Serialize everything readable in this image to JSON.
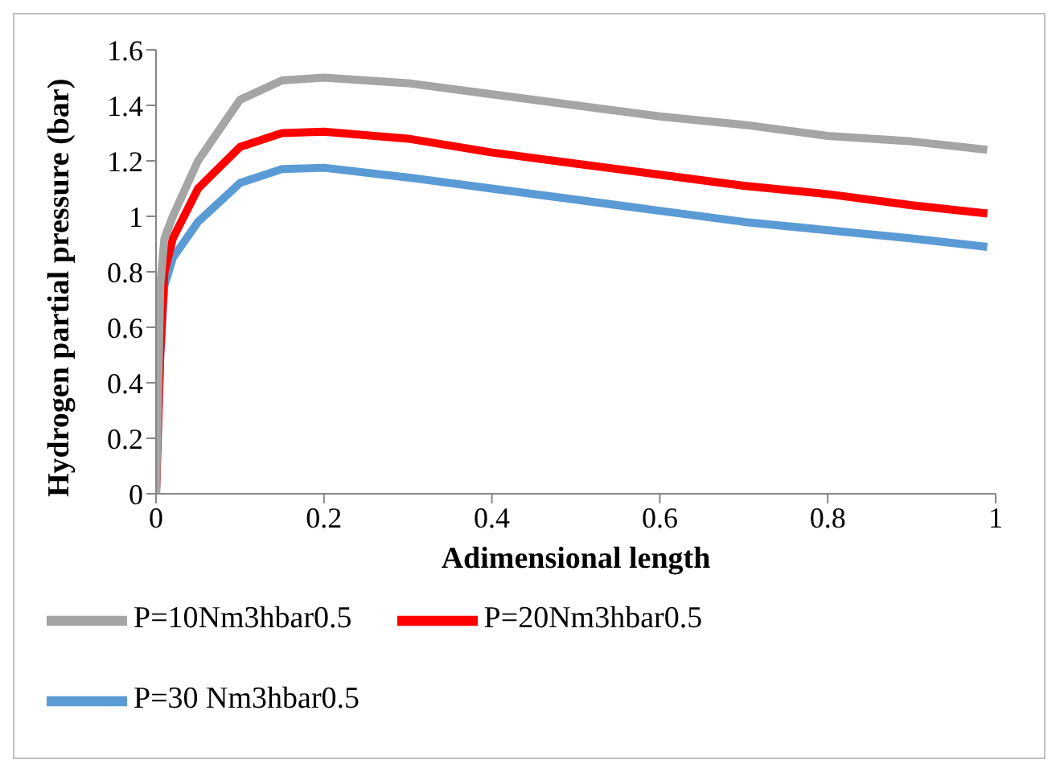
{
  "chart_data": {
    "type": "line",
    "xlabel": "Adimensional length",
    "ylabel": "Hydrogen partial pressure (bar)",
    "x": [
      0,
      0.005,
      0.01,
      0.02,
      0.05,
      0.1,
      0.15,
      0.2,
      0.3,
      0.4,
      0.5,
      0.6,
      0.7,
      0.8,
      0.9,
      0.99
    ],
    "series": [
      {
        "name": "P=30 Nm3hbar0.5",
        "color": "#5b9bd5",
        "values": [
          0,
          0.5,
          0.75,
          0.85,
          0.98,
          1.12,
          1.17,
          1.175,
          1.14,
          1.1,
          1.06,
          1.02,
          0.98,
          0.95,
          0.92,
          0.89
        ]
      },
      {
        "name": "P=20Nm3hbar0.5",
        "color": "#ff0000",
        "values": [
          0,
          0.5,
          0.8,
          0.92,
          1.1,
          1.25,
          1.3,
          1.305,
          1.28,
          1.23,
          1.19,
          1.15,
          1.11,
          1.08,
          1.04,
          1.01
        ]
      },
      {
        "name": "P=10Nm3hbar0.5",
        "color": "#a5a5a5",
        "values": [
          0,
          0.75,
          0.92,
          1.0,
          1.2,
          1.42,
          1.49,
          1.5,
          1.48,
          1.44,
          1.4,
          1.36,
          1.33,
          1.29,
          1.27,
          1.24
        ]
      }
    ],
    "xlim": [
      0,
      1
    ],
    "xticks": [
      0,
      0.2,
      0.4,
      0.6,
      0.8,
      1
    ],
    "ylim": [
      0,
      1.6
    ],
    "yticks": [
      0,
      0.2,
      0.4,
      0.6,
      0.8,
      1,
      1.2,
      1.4,
      1.6
    ],
    "grid": false,
    "legend": "bottom",
    "marker": "none",
    "line_style": "solid"
  }
}
